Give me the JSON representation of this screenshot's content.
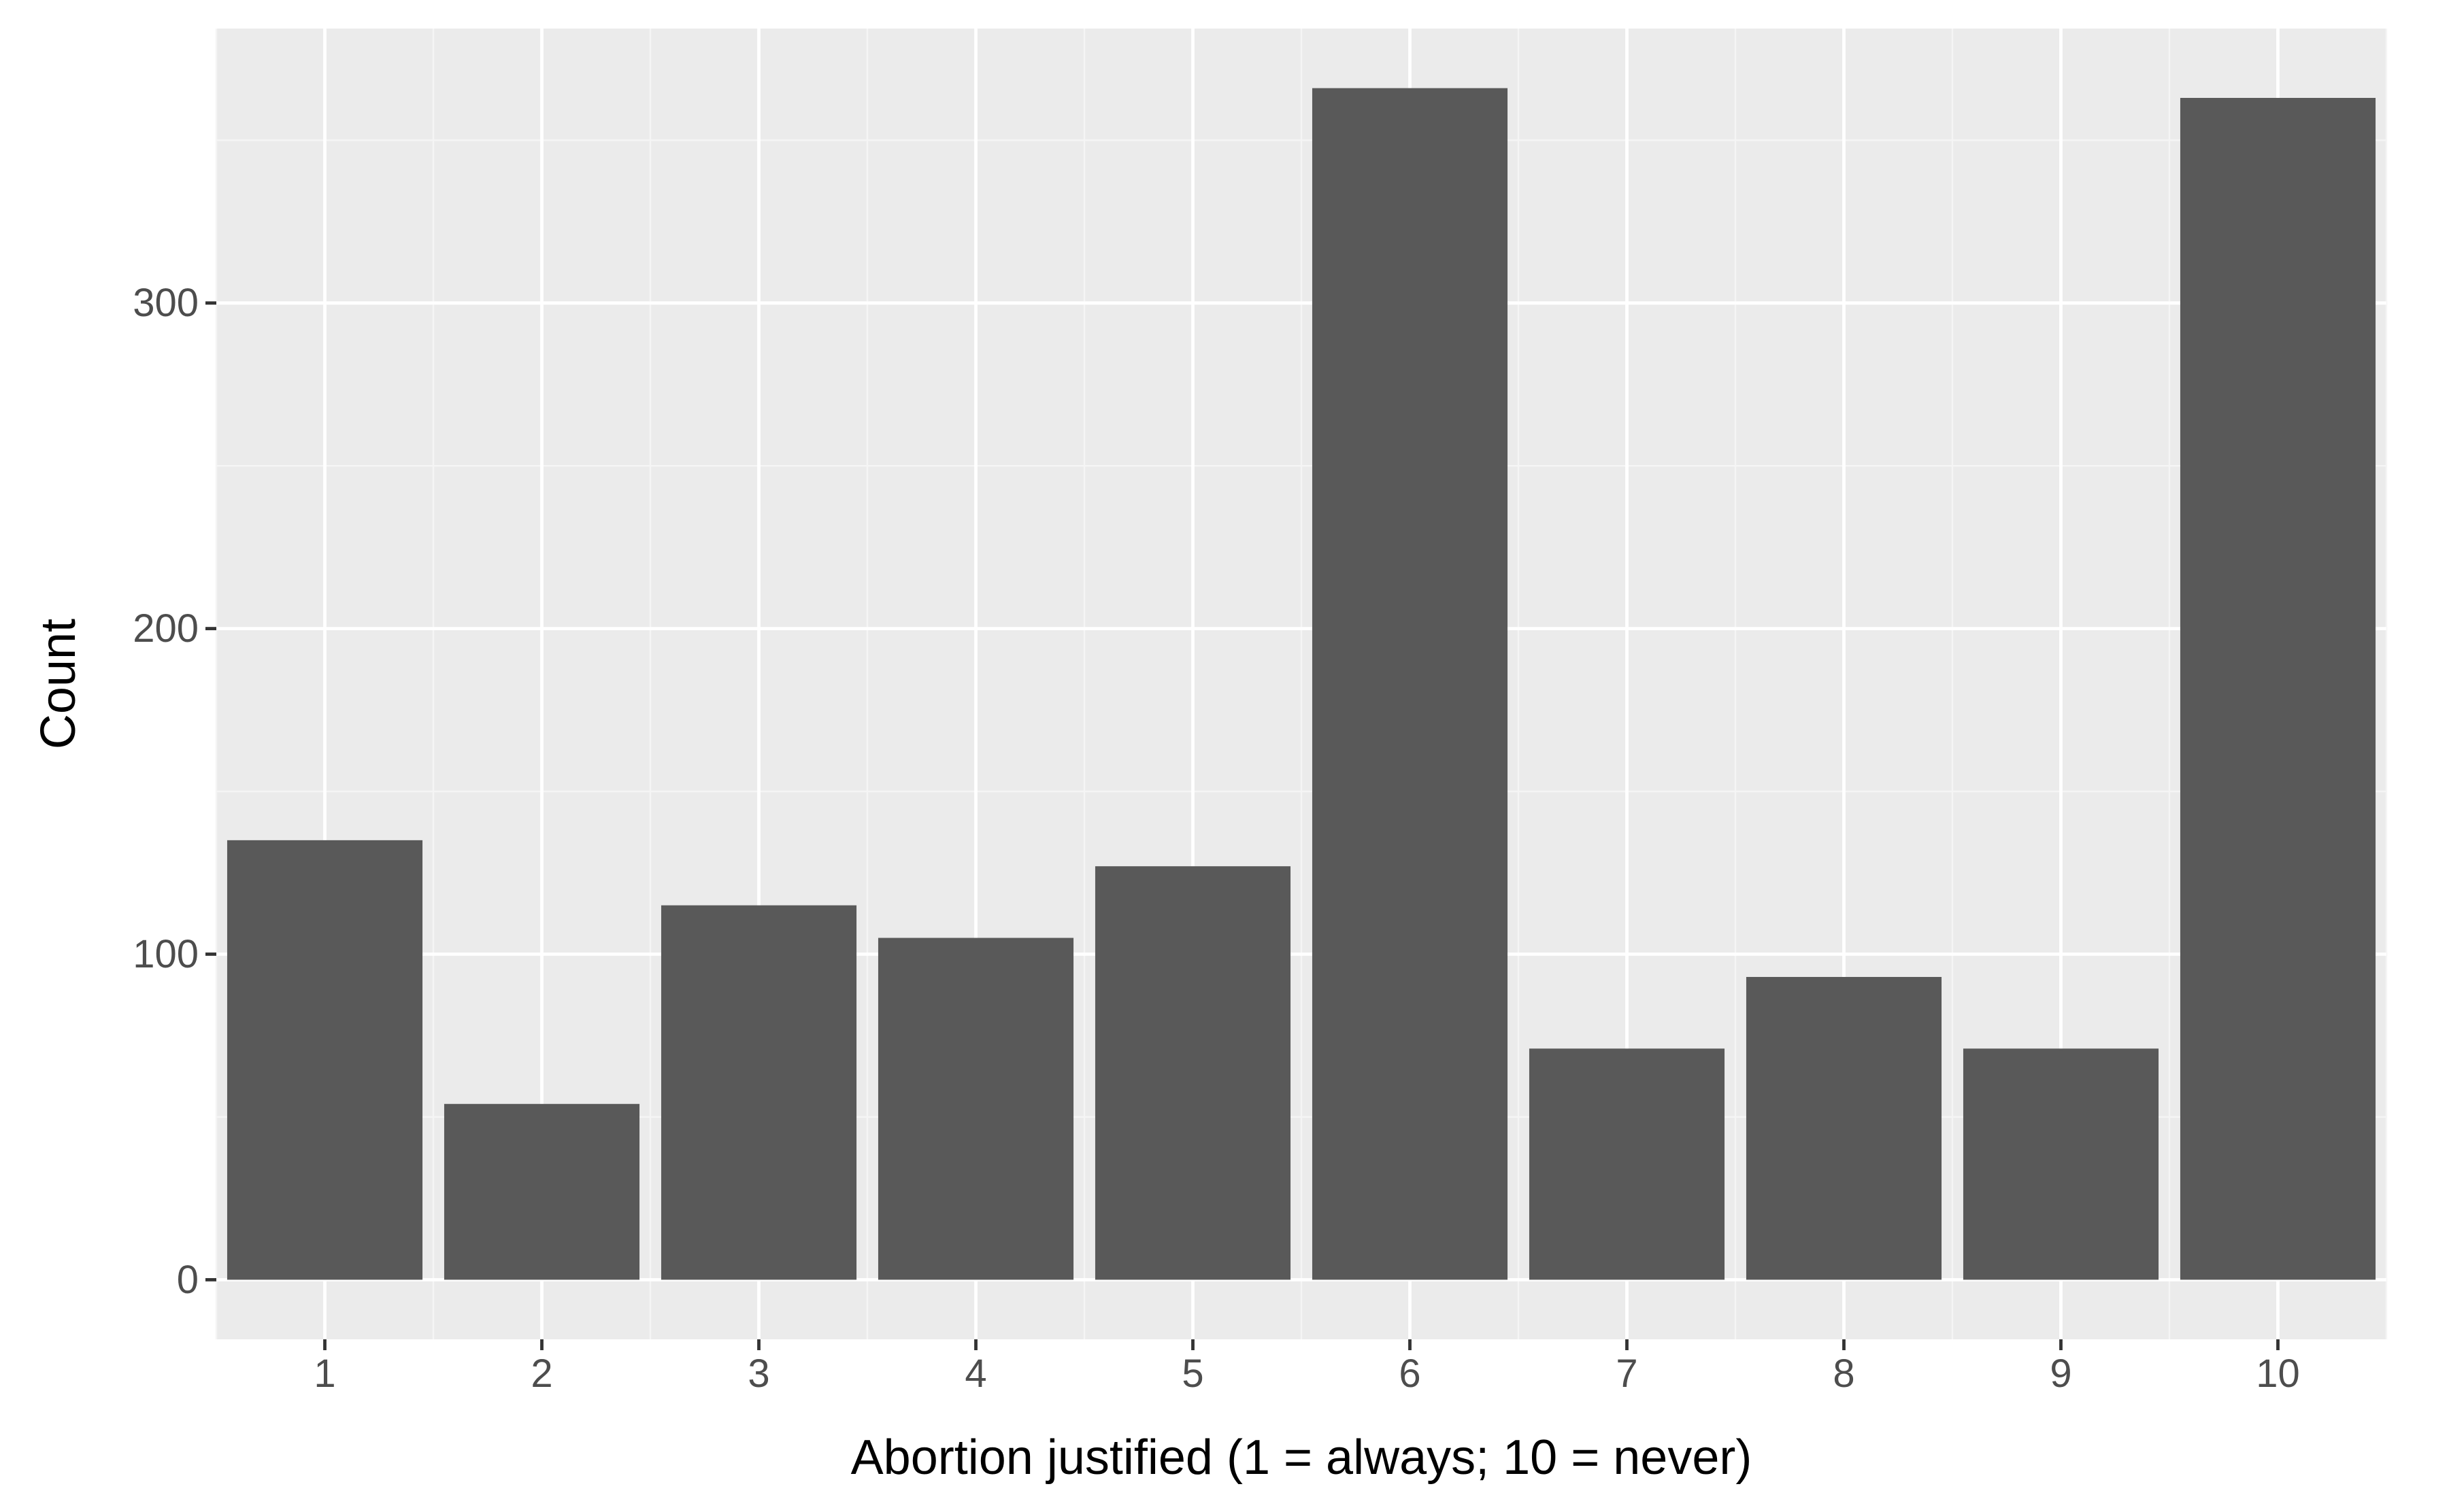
{
  "chart_data": {
    "type": "bar",
    "categories": [
      "1",
      "2",
      "3",
      "4",
      "5",
      "6",
      "7",
      "8",
      "9",
      "10"
    ],
    "values": [
      135,
      54,
      115,
      105,
      127,
      366,
      71,
      93,
      71,
      363
    ],
    "xlabel": "Abortion justified (1 = always; 10 = never)",
    "ylabel": "Count",
    "ylim": [
      -18.3,
      384.3
    ],
    "yticks": [
      0,
      100,
      200,
      300
    ],
    "ytick_labels": [
      "0",
      "100",
      "200",
      "300"
    ],
    "grid": true,
    "colors": {
      "panel_background": "#EBEBEB",
      "grid_major": "#FFFFFF",
      "grid_minor": "#F5F5F5",
      "bar_fill": "#595959",
      "tick_text": "#4D4D4D",
      "tick_mark": "#333333",
      "axis_title": "#000000"
    }
  }
}
